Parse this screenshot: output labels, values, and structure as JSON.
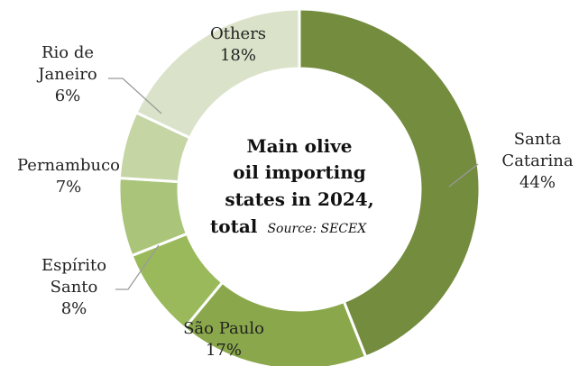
{
  "chart_data": {
    "type": "pie",
    "donut": true,
    "title_lines": [
      "Main olive",
      "oil importing",
      "states in 2024,"
    ],
    "title_last_word": "total",
    "source": "Source: SECEX",
    "slices": [
      {
        "name": "Santa Catarina",
        "label_lines": [
          "Santa",
          "Catarina"
        ],
        "value": 44,
        "value_label": "44%",
        "color": "#748c3e"
      },
      {
        "name": "São Paulo",
        "label_lines": [
          "São Paulo"
        ],
        "value": 17,
        "value_label": "17%",
        "color": "#8aa84b"
      },
      {
        "name": "Espírito Santo",
        "label_lines": [
          "Espírito",
          "Santo"
        ],
        "value": 8,
        "value_label": "8%",
        "color": "#9ab95b"
      },
      {
        "name": "Pernambuco",
        "label_lines": [
          "Pernambuco"
        ],
        "value": 7,
        "value_label": "7%",
        "color": "#aac57a"
      },
      {
        "name": "Rio de Janeiro",
        "label_lines": [
          "Rio de",
          "Janeiro"
        ],
        "value": 6,
        "value_label": "6%",
        "color": "#c5d5a4"
      },
      {
        "name": "Others",
        "label_lines": [
          "Others"
        ],
        "value": 18,
        "value_label": "18%",
        "color": "#dae3c9"
      }
    ]
  }
}
